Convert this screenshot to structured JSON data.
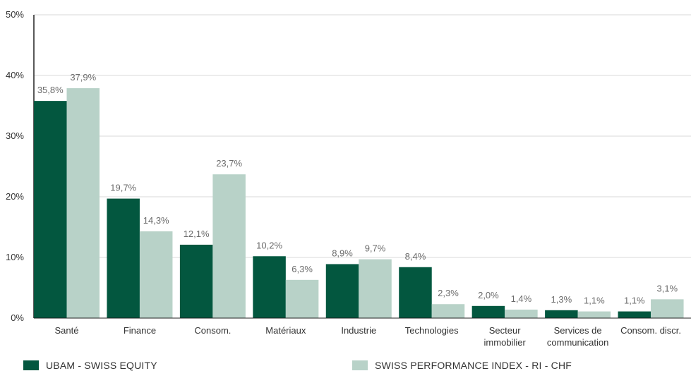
{
  "chart_data": {
    "type": "bar",
    "title": "",
    "xlabel": "",
    "ylabel": "",
    "ylim": [
      0,
      50
    ],
    "y_ticks": [
      "0%",
      "10%",
      "20%",
      "30%",
      "40%",
      "50%"
    ],
    "y_tick_values": [
      0,
      10,
      20,
      30,
      40,
      50
    ],
    "grid": true,
    "legend_position": "bottom",
    "categories": [
      [
        "Santé"
      ],
      [
        "Finance"
      ],
      [
        "Consom."
      ],
      [
        "Matériaux"
      ],
      [
        "Industrie"
      ],
      [
        "Technologies"
      ],
      [
        "Secteur",
        "immobilier"
      ],
      [
        "Services de",
        "communication"
      ],
      [
        "Consom. discr."
      ]
    ],
    "series": [
      {
        "name": "UBAM - SWISS EQUITY",
        "color": "#03573f",
        "values": [
          35.8,
          19.7,
          12.1,
          10.2,
          8.9,
          8.4,
          2.0,
          1.3,
          1.1
        ],
        "labels": [
          "35,8%",
          "19,7%",
          "12,1%",
          "10,2%",
          "8,9%",
          "8,4%",
          "2,0%",
          "1,3%",
          "1,1%"
        ]
      },
      {
        "name": "SWISS PERFORMANCE INDEX - RI - CHF",
        "color": "#b8d2c8",
        "values": [
          37.9,
          14.3,
          23.7,
          6.3,
          9.7,
          2.3,
          1.4,
          1.1,
          3.1
        ],
        "labels": [
          "37,9%",
          "14,3%",
          "23,7%",
          "6,3%",
          "9,7%",
          "2,3%",
          "1,4%",
          "1,1%",
          "3,1%"
        ]
      }
    ]
  },
  "legend": {
    "series1_label": "UBAM - SWISS EQUITY",
    "series2_label": "SWISS PERFORMANCE INDEX - RI - CHF"
  }
}
